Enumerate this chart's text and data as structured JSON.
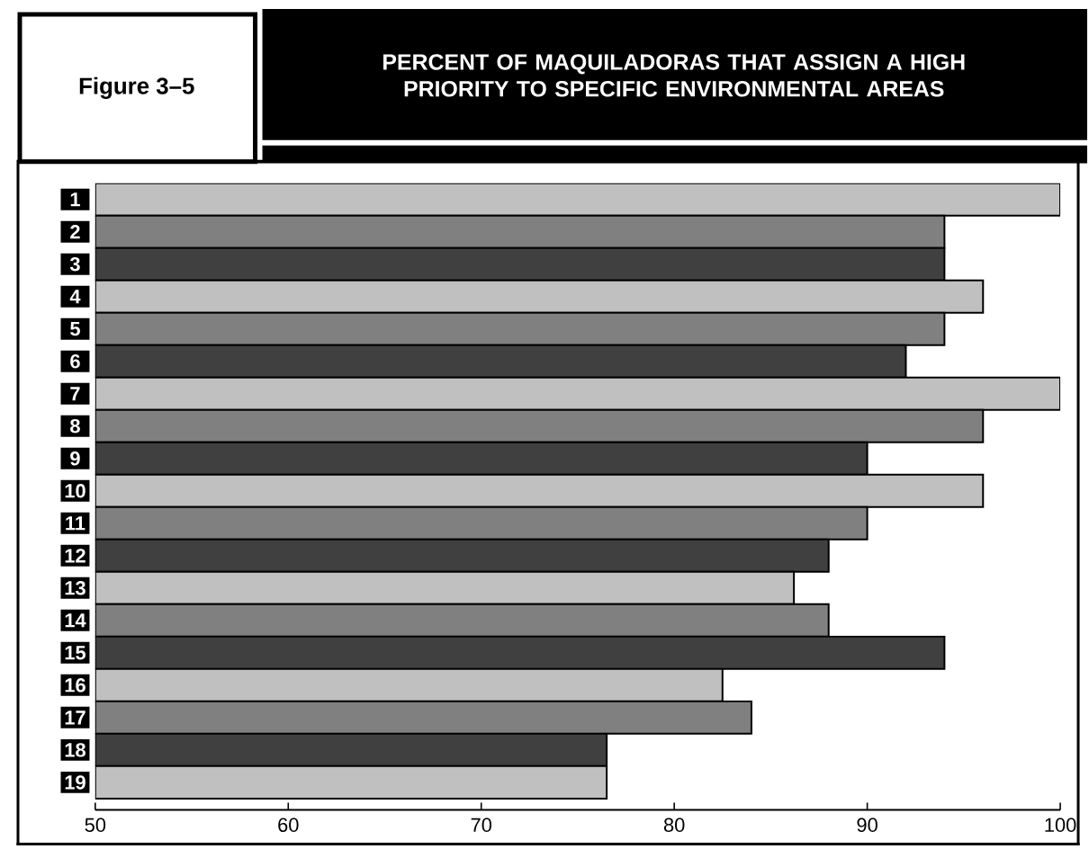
{
  "chart_data": {
    "type": "bar",
    "orientation": "horizontal",
    "title": "PERCENT OF MAQUILADORAS THAT ASSIGN A HIGH PRIORITY TO SPECIFIC ENVIRONMENTAL AREAS",
    "annotations": [
      "Figure 3–5"
    ],
    "categories": [
      "1",
      "2",
      "3",
      "4",
      "5",
      "6",
      "7",
      "8",
      "9",
      "10",
      "11",
      "12",
      "13",
      "14",
      "15",
      "16",
      "17",
      "18",
      "19"
    ],
    "values": [
      100,
      94,
      94,
      96,
      94,
      92,
      100,
      96,
      90,
      96,
      90,
      88,
      86.2,
      88,
      94,
      82.5,
      84,
      76.5,
      76.5
    ],
    "colors": [
      "#c0c0c0",
      "#808080",
      "#404040",
      "#c0c0c0",
      "#808080",
      "#404040",
      "#c0c0c0",
      "#808080",
      "#404040",
      "#c0c0c0",
      "#808080",
      "#404040",
      "#c0c0c0",
      "#808080",
      "#404040",
      "#c0c0c0",
      "#808080",
      "#404040",
      "#c0c0c0"
    ],
    "xlim": [
      50,
      100
    ],
    "xticks": [
      50,
      60,
      70,
      80,
      90,
      100
    ],
    "grid": false
  }
}
